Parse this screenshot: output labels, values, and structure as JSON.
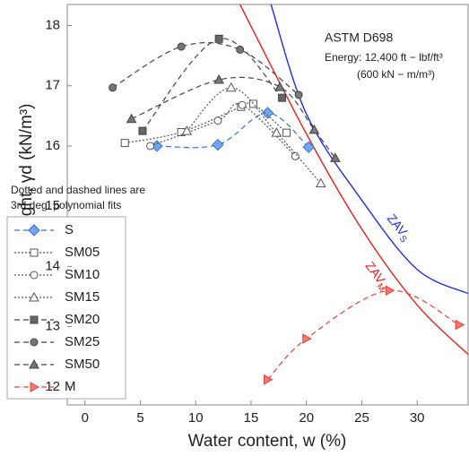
{
  "chart_data": {
    "type": "scatter",
    "xlabel": "Water content, w (%)",
    "ylabel": "Dry unit weight, γd (kN/m³)",
    "xlim": [
      -1.6,
      34.6
    ],
    "ylim": [
      11.7,
      18.35
    ],
    "xticks": [
      0,
      5,
      10,
      15,
      20,
      25,
      30
    ],
    "yticks": [
      12,
      13,
      14,
      15,
      16,
      17,
      18
    ],
    "legend": "lower left",
    "legend_note": [
      "Dotted and dashed lines are",
      "3rd deg. polynomial fits"
    ],
    "annotation": [
      "ASTM D698",
      "Energy: 12,400 ft − lbf/ft³",
      "(600 kN − m/m³)"
    ],
    "series": [
      {
        "name": "S",
        "marker": "diamond",
        "color": "#3a6fd8",
        "fill": "#6fa8f0",
        "dash": "6 4",
        "x": [
          6.5,
          12,
          16.5,
          20.2
        ],
        "values": [
          16.0,
          16.02,
          16.55,
          15.98
        ]
      },
      {
        "name": "SM05",
        "marker": "square",
        "color": "#555555",
        "fill": "#ffffff",
        "dash": "2 2",
        "x": [
          3.6,
          8.7,
          14.1,
          15.2,
          18.2
        ],
        "values": [
          16.05,
          16.23,
          16.65,
          16.7,
          16.22
        ]
      },
      {
        "name": "SM10",
        "marker": "circle",
        "color": "#555555",
        "fill": "#ffffff",
        "dash": "2 2",
        "x": [
          5.9,
          12,
          14.2,
          19
        ],
        "values": [
          16.0,
          16.42,
          16.68,
          15.83
        ]
      },
      {
        "name": "SM15",
        "marker": "triangle",
        "color": "#555555",
        "fill": "#ffffff",
        "dash": "2 2",
        "x": [
          9.2,
          13.2,
          17.3,
          21.3
        ],
        "values": [
          16.25,
          16.97,
          16.22,
          15.38
        ]
      },
      {
        "name": "SM20",
        "marker": "square",
        "color": "#444444",
        "fill": "#666666",
        "dash": "6 4",
        "x": [
          5.2,
          12.1,
          17.8
        ],
        "values": [
          16.25,
          17.78,
          16.8
        ]
      },
      {
        "name": "SM25",
        "marker": "circle",
        "color": "#444444",
        "fill": "#777777",
        "dash": "6 4",
        "x": [
          2.5,
          8.7,
          14,
          19.3
        ],
        "values": [
          16.97,
          17.65,
          17.6,
          16.85
        ]
      },
      {
        "name": "SM50",
        "marker": "triangle",
        "color": "#444444",
        "fill": "#777777",
        "dash": "6 4",
        "x": [
          4.2,
          12.1,
          17.6,
          20.7,
          22.6
        ],
        "values": [
          16.45,
          17.1,
          16.98,
          16.27,
          15.8
        ]
      },
      {
        "name": "M",
        "marker": "triangle-right",
        "color": "#e8413a",
        "fill": "#f07a70",
        "dash": "6 4",
        "x": [
          16.5,
          20,
          27.5,
          33.8
        ],
        "values": [
          12.12,
          12.8,
          13.6,
          13.03
        ]
      }
    ],
    "zav_curves": [
      {
        "name": "ZAV",
        "subscript": "M",
        "color": "#e8201a",
        "x": [
          14,
          20,
          25,
          30,
          34.6
        ],
        "values": [
          18.35,
          16.2,
          14.62,
          13.36,
          12.54
        ]
      },
      {
        "name": "ZAV",
        "subscript": "S",
        "color": "#2030e0",
        "x": [
          16.8,
          20,
          25,
          30,
          34.6
        ],
        "values": [
          18.35,
          16.53,
          15.1,
          13.95,
          13.55
        ]
      }
    ]
  }
}
